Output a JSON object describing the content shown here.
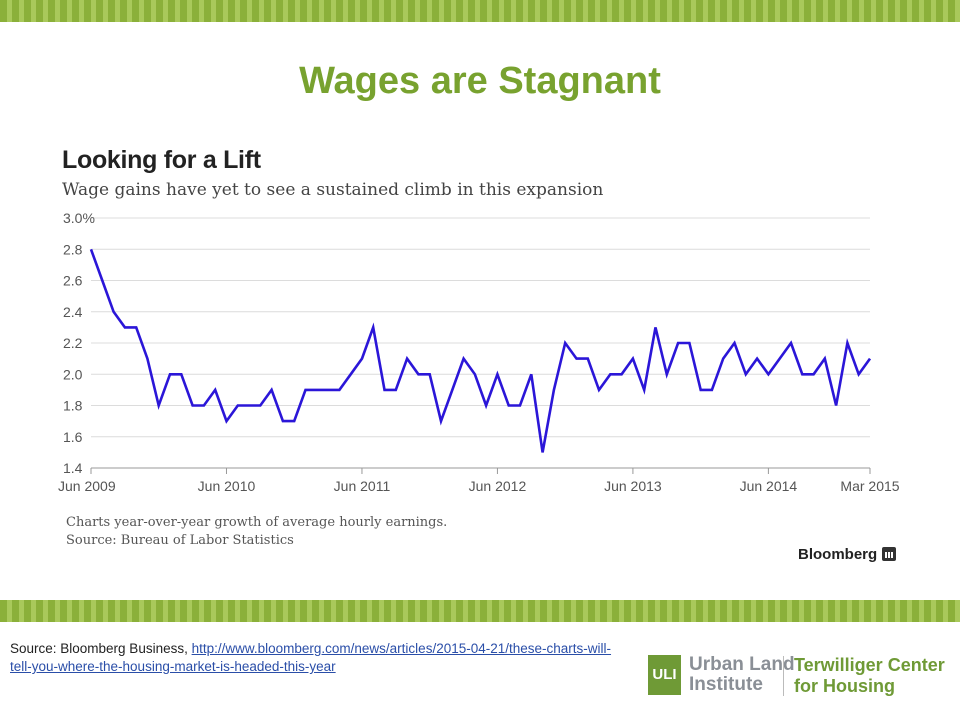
{
  "slide": {
    "title": "Wages are Stagnant",
    "footer_source_prefix": "Source: Bloomberg Business, ",
    "footer_source_link": "http://www.bloomberg.com/news/articles/2015-04-21/these-charts-will-tell-you-where-the-housing-market-is-headed-this-year"
  },
  "branding": {
    "uli_mark": "ULI",
    "uli_line1": "Urban Land",
    "uli_line2": "Institute",
    "center_line1": "Terwilliger Center",
    "center_line2": "for Housing",
    "bloomberg": "Bloomberg"
  },
  "colors": {
    "accent_green": "#78a22f",
    "line_blue": "#2b16d8"
  },
  "chart_data": {
    "type": "line",
    "title": "Looking for a Lift",
    "subtitle": "Wage gains have yet to see a sustained climb in this expansion",
    "note": "Charts year-over-year growth of average hourly earnings.",
    "source": "Source: Bureau of Labor Statistics",
    "xlabel": "",
    "ylabel": "",
    "ylim": [
      1.4,
      3.0
    ],
    "y_ticks": [
      "3.0%",
      "2.8",
      "2.6",
      "2.4",
      "2.2",
      "2.0",
      "1.8",
      "1.6",
      "1.4"
    ],
    "x_ticks": [
      "Jun 2009",
      "Jun 2010",
      "Jun 2011",
      "Jun 2012",
      "Jun 2013",
      "Jun 2014",
      "Mar 2015"
    ],
    "grid": true,
    "series": [
      {
        "x_start": "Jun 2009",
        "x_end": "Mar 2015",
        "frequency": "monthly",
        "values": [
          2.8,
          2.6,
          2.4,
          2.3,
          2.3,
          2.1,
          1.8,
          2.0,
          2.0,
          1.8,
          1.8,
          1.9,
          1.7,
          1.8,
          1.8,
          1.8,
          1.9,
          1.7,
          1.7,
          1.9,
          1.9,
          1.9,
          1.9,
          2.0,
          2.1,
          2.3,
          1.9,
          1.9,
          2.1,
          2.0,
          2.0,
          1.7,
          1.9,
          2.1,
          2.0,
          1.8,
          2.0,
          1.8,
          1.8,
          2.0,
          1.5,
          1.9,
          2.2,
          2.1,
          2.1,
          1.9,
          2.0,
          2.0,
          2.1,
          1.9,
          2.3,
          2.0,
          2.2,
          2.2,
          1.9,
          1.9,
          2.1,
          2.2,
          2.0,
          2.1,
          2.0,
          2.1,
          2.2,
          2.0,
          2.0,
          2.1,
          1.8,
          2.2,
          2.0,
          2.1
        ]
      }
    ]
  }
}
